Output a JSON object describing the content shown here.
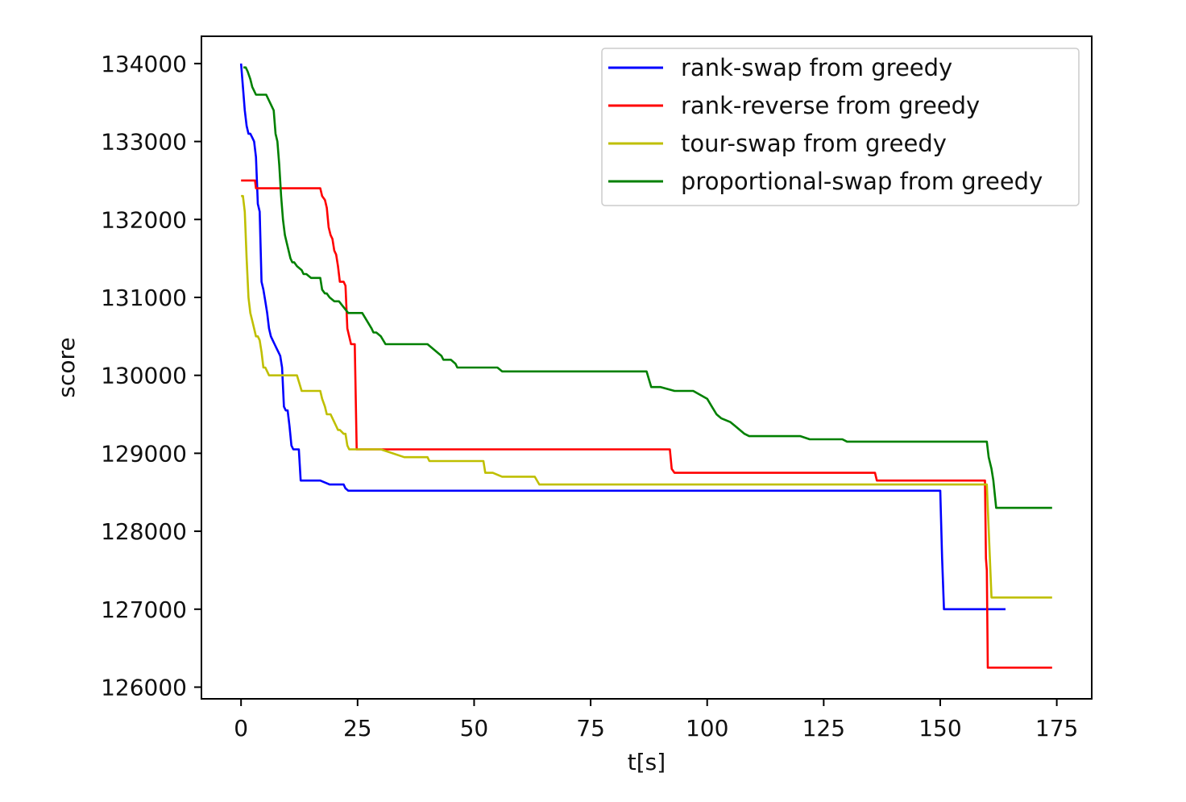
{
  "chart_data": {
    "type": "line",
    "title": "",
    "xlabel": "t[s]",
    "ylabel": "score",
    "xlim": [
      -8.5,
      182.5
    ],
    "ylim": [
      125850,
      134350
    ],
    "xticks": [
      0,
      25,
      50,
      75,
      100,
      125,
      150,
      175
    ],
    "xtick_labels": [
      "0",
      "25",
      "50",
      "75",
      "100",
      "125",
      "150",
      "175"
    ],
    "yticks": [
      126000,
      127000,
      128000,
      129000,
      130000,
      131000,
      132000,
      133000,
      134000
    ],
    "ytick_labels": [
      "126000",
      "127000",
      "128000",
      "129000",
      "130000",
      "131000",
      "132000",
      "133000",
      "134000"
    ],
    "grid": false,
    "legend_position": "top-right",
    "series": [
      {
        "name": "rank-swap from greedy",
        "color": "#0000ff",
        "x": [
          0,
          0.4,
          0.8,
          1.2,
          1.6,
          2,
          2.4,
          2.8,
          3.2,
          3.6,
          4,
          4.4,
          4.8,
          5.2,
          5.6,
          6,
          6.4,
          6.8,
          7.2,
          7.6,
          8,
          8.4,
          8.8,
          9.2,
          9.6,
          10,
          10.4,
          10.8,
          11.2,
          11.6,
          12,
          12.4,
          12.8,
          13.2,
          13.6,
          14,
          15,
          17,
          19,
          19.4,
          21,
          22,
          22.4,
          23,
          24,
          30,
          50,
          100,
          140,
          148,
          150,
          150.4,
          150.8,
          151.2,
          152,
          160,
          164
        ],
        "y": [
          134000,
          133700,
          133400,
          133200,
          133100,
          133100,
          133050,
          133000,
          132800,
          132200,
          132100,
          131200,
          131100,
          130950,
          130800,
          130600,
          130500,
          130450,
          130400,
          130350,
          130300,
          130250,
          130100,
          129600,
          129550,
          129550,
          129350,
          129100,
          129050,
          129050,
          129050,
          129050,
          128650,
          128650,
          128650,
          128650,
          128650,
          128650,
          128600,
          128600,
          128600,
          128600,
          128550,
          128520,
          128520,
          128520,
          128520,
          128520,
          128520,
          128520,
          128520,
          127650,
          127000,
          127000,
          127000,
          127000,
          127000
        ]
      },
      {
        "name": "rank-reverse from greedy",
        "color": "#ff0000",
        "x": [
          0,
          3,
          3.2,
          5,
          8,
          10,
          12,
          15,
          17,
          17.4,
          18,
          18.4,
          18.8,
          19.2,
          19.6,
          20,
          20.4,
          20.8,
          21.2,
          21.6,
          22,
          22.4,
          22.8,
          23.2,
          23.6,
          24,
          24.4,
          24.8,
          25.2,
          25.6,
          26,
          26.4,
          26.6,
          27,
          30,
          35,
          50,
          80,
          92,
          92.4,
          93,
          100,
          120,
          136,
          136.4,
          137,
          150,
          155,
          159.5,
          159.6,
          159.8,
          160,
          160.2,
          163,
          167,
          171,
          174
        ],
        "y": [
          132500,
          132500,
          132400,
          132400,
          132400,
          132400,
          132400,
          132400,
          132400,
          132300,
          132250,
          132150,
          131900,
          131800,
          131750,
          131600,
          131550,
          131400,
          131200,
          131200,
          131200,
          131150,
          130600,
          130500,
          130400,
          130400,
          130400,
          129050,
          129050,
          129050,
          129050,
          129050,
          129050,
          129050,
          129050,
          129050,
          129050,
          129050,
          129050,
          128800,
          128750,
          128750,
          128750,
          128750,
          128650,
          128650,
          128650,
          128650,
          128650,
          128650,
          127650,
          127500,
          126250,
          126250,
          126250,
          126250,
          126250
        ]
      },
      {
        "name": "tour-swap from greedy",
        "color": "#bfbf00",
        "x": [
          0,
          0.4,
          0.8,
          1.2,
          1.6,
          2,
          2.4,
          2.8,
          3.2,
          3.6,
          4,
          4.4,
          4.8,
          5.2,
          5.6,
          6,
          6.4,
          7,
          8,
          9,
          12,
          13,
          13.4,
          15,
          17,
          17.4,
          18,
          18.4,
          18.8,
          19.2,
          20,
          20.4,
          20.8,
          21.2,
          22,
          22.4,
          22.8,
          23.2,
          23.6,
          24,
          24.4,
          24.8,
          25.2,
          26,
          30,
          35,
          35.4,
          40,
          40.4,
          50,
          52,
          52.4,
          54,
          56,
          56.4,
          60,
          63,
          64,
          64.4,
          80,
          100,
          120,
          140,
          155,
          160,
          160.2,
          161,
          161.2,
          165,
          170,
          174
        ],
        "y": [
          132300,
          132300,
          132100,
          131500,
          131000,
          130800,
          130700,
          130600,
          130500,
          130500,
          130450,
          130300,
          130100,
          130100,
          130050,
          130000,
          130000,
          130000,
          130000,
          130000,
          130000,
          129800,
          129800,
          129800,
          129800,
          129700,
          129600,
          129500,
          129500,
          129500,
          129400,
          129350,
          129300,
          129300,
          129250,
          129250,
          129100,
          129050,
          129050,
          129050,
          129050,
          129050,
          129050,
          129050,
          129050,
          128950,
          128950,
          128950,
          128900,
          128900,
          128900,
          128750,
          128750,
          128700,
          128700,
          128700,
          128700,
          128600,
          128600,
          128600,
          128600,
          128600,
          128600,
          128600,
          128600,
          128300,
          127150,
          127150,
          127150,
          127150,
          127150
        ]
      },
      {
        "name": "proportional-swap from greedy",
        "color": "#008000",
        "x": [
          0.5,
          1,
          1.4,
          2,
          2.4,
          2.8,
          3.2,
          3.6,
          4,
          4.4,
          5,
          5.4,
          7,
          7.4,
          7.8,
          8.2,
          8.6,
          9,
          9.4,
          9.8,
          10.2,
          10.6,
          11,
          11.4,
          12,
          13,
          13.4,
          14,
          15,
          17,
          17.4,
          18,
          18.4,
          19,
          20,
          20.4,
          21,
          23,
          23.4,
          24,
          25,
          26,
          28,
          28.4,
          29,
          30,
          31,
          32,
          32.4,
          34,
          35,
          40,
          43,
          43.4,
          45,
          46,
          46.4,
          50,
          55,
          56,
          56.4,
          60,
          70,
          87,
          88,
          88.4,
          90,
          93,
          95,
          97,
          100,
          101,
          102,
          103,
          105,
          106,
          107,
          108,
          109,
          110,
          115,
          120,
          122,
          123,
          125,
          129,
          130,
          135,
          140,
          150,
          160,
          160.4,
          161,
          161.4,
          162,
          162.4,
          165,
          170,
          174
        ],
        "y": [
          133950,
          133950,
          133900,
          133800,
          133700,
          133650,
          133600,
          133600,
          133600,
          133600,
          133600,
          133600,
          133400,
          133100,
          133000,
          132700,
          132300,
          132000,
          131800,
          131700,
          131600,
          131500,
          131450,
          131450,
          131400,
          131350,
          131300,
          131300,
          131250,
          131250,
          131100,
          131050,
          131050,
          131000,
          130950,
          130950,
          130950,
          130800,
          130800,
          130800,
          130800,
          130800,
          130600,
          130550,
          130550,
          130500,
          130400,
          130400,
          130400,
          130400,
          130400,
          130400,
          130250,
          130200,
          130200,
          130150,
          130100,
          130100,
          130100,
          130050,
          130050,
          130050,
          130050,
          130050,
          129850,
          129850,
          129850,
          129800,
          129800,
          129800,
          129700,
          129600,
          129500,
          129450,
          129400,
          129350,
          129300,
          129250,
          129220,
          129220,
          129220,
          129220,
          129180,
          129180,
          129180,
          129180,
          129150,
          129150,
          129150,
          129150,
          129150,
          128950,
          128800,
          128650,
          128300,
          128300,
          128300,
          128300,
          128300
        ]
      }
    ]
  }
}
